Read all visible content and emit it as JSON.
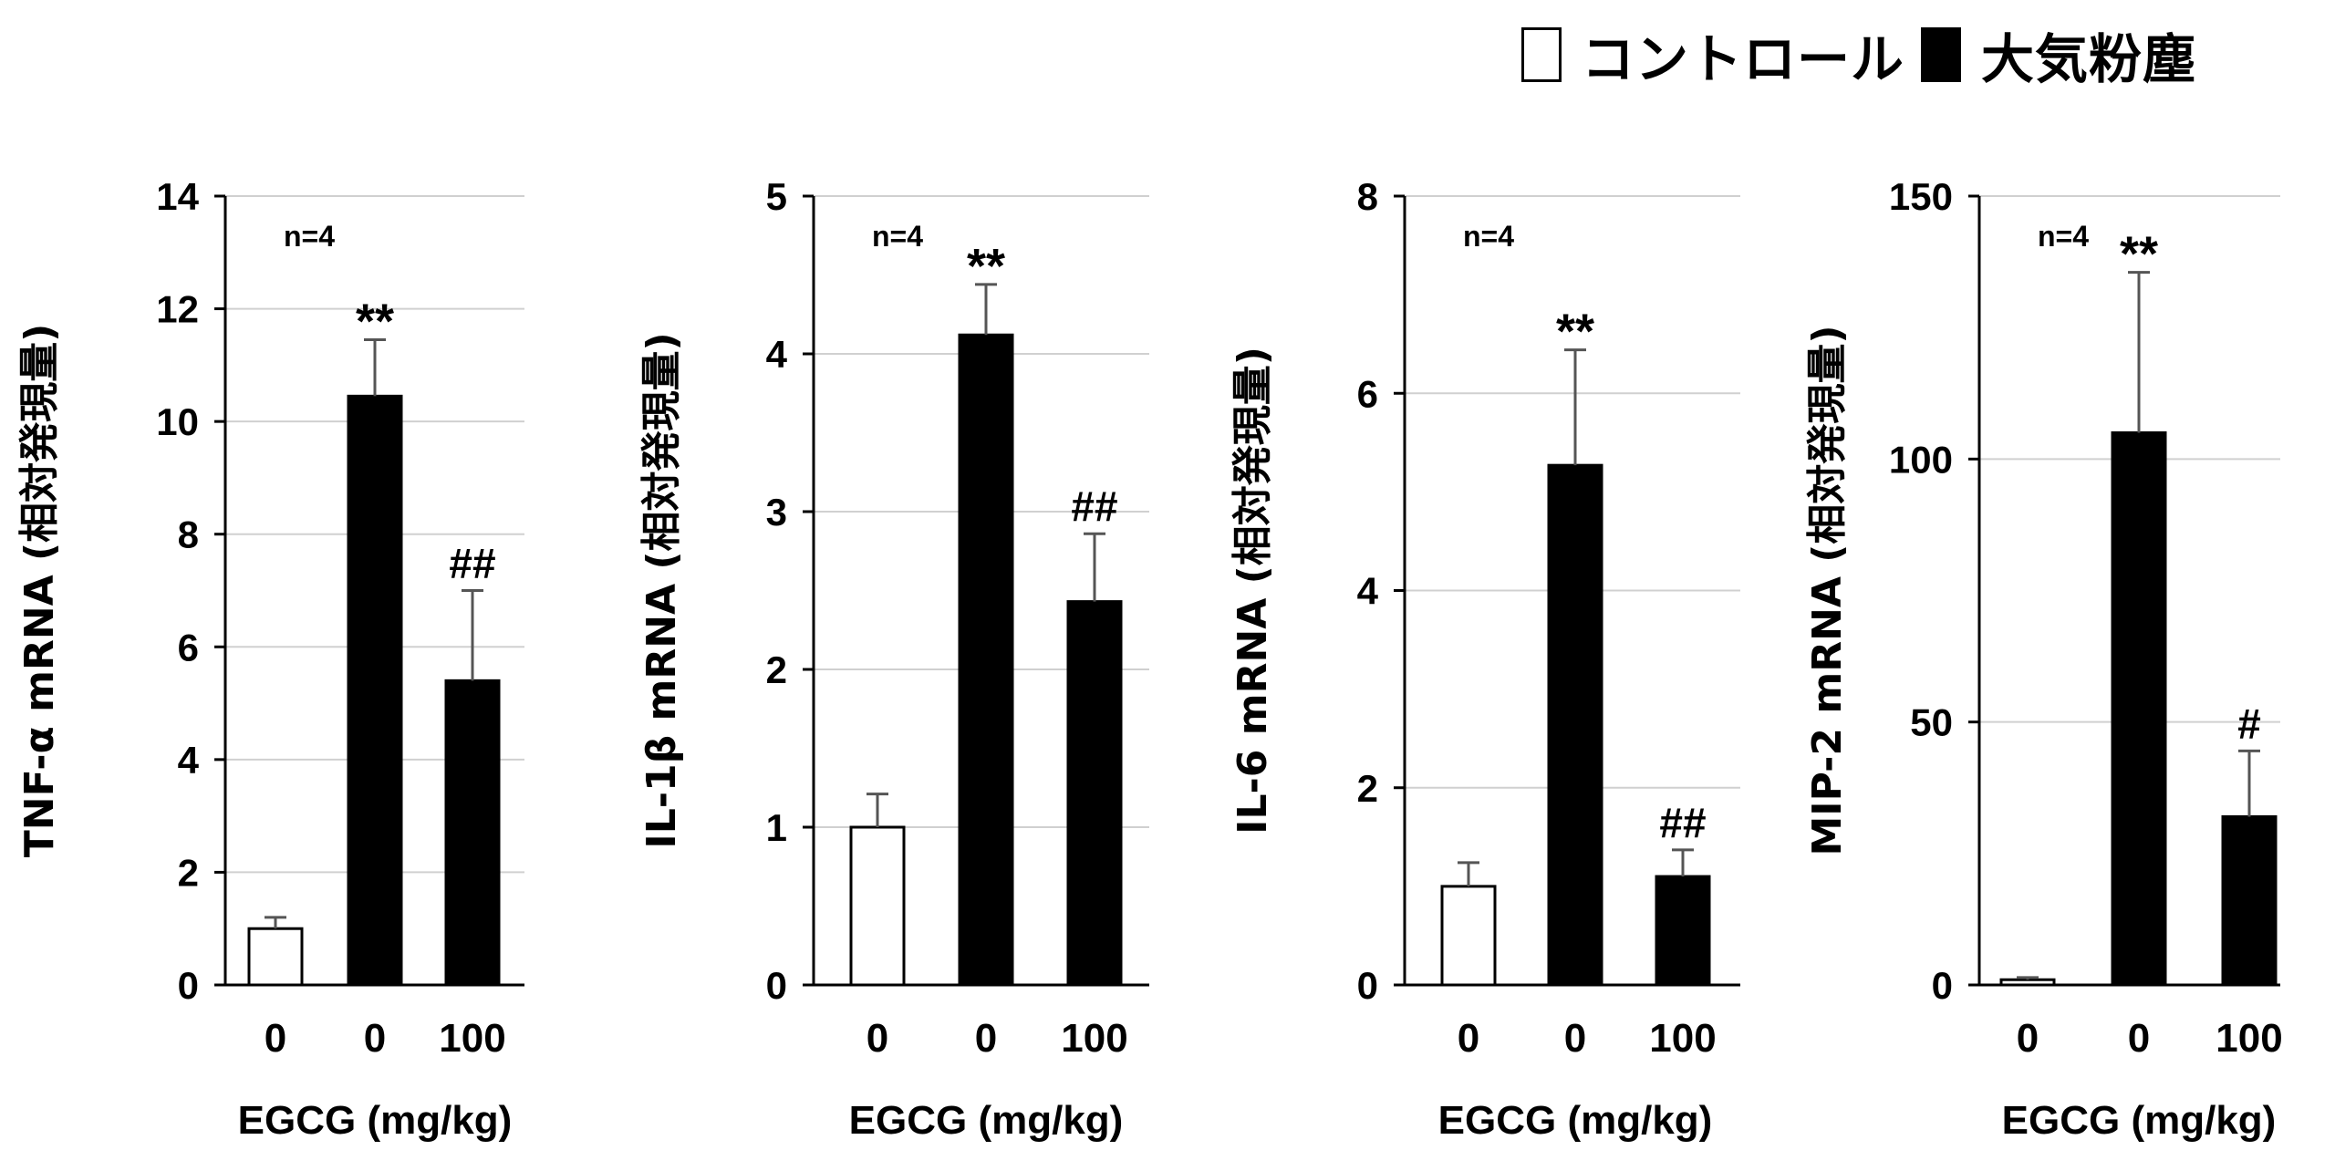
{
  "legend": [
    {
      "label": "コントロール",
      "fill": "#ffffff"
    },
    {
      "label": "大気粉塵",
      "fill": "#000000"
    }
  ],
  "chart_data": [
    {
      "type": "bar",
      "ylabel": "TNF-α mRNA (相対発現量)",
      "xlabel": "EGCG (mg/kg)",
      "annotation": "n=4",
      "ylim": [
        0,
        14
      ],
      "yticks": [
        0,
        2,
        4,
        6,
        8,
        10,
        12,
        14
      ],
      "grid": true,
      "categories": [
        "0",
        "0",
        "100"
      ],
      "values": [
        1.0,
        10.45,
        5.4
      ],
      "errors": [
        0.2,
        1.0,
        1.6
      ],
      "fills": [
        "#ffffff",
        "#000000",
        "#000000"
      ],
      "marks": [
        "",
        "**",
        "##"
      ]
    },
    {
      "type": "bar",
      "ylabel": "IL-1β mRNA (相対発現量)",
      "xlabel": "EGCG (mg/kg)",
      "annotation": "n=4",
      "ylim": [
        0,
        5
      ],
      "yticks": [
        0,
        1,
        2,
        3,
        4,
        5
      ],
      "grid": true,
      "categories": [
        "0",
        "0",
        "100"
      ],
      "values": [
        1.0,
        4.12,
        2.43
      ],
      "errors": [
        0.21,
        0.32,
        0.43
      ],
      "fills": [
        "#ffffff",
        "#000000",
        "#000000"
      ],
      "marks": [
        "",
        "**",
        "##"
      ]
    },
    {
      "type": "bar",
      "ylabel": "IL-6 mRNA (相対発現量)",
      "xlabel": "EGCG (mg/kg)",
      "annotation": "n=4",
      "ylim": [
        0,
        8
      ],
      "yticks": [
        0,
        2,
        4,
        6,
        8
      ],
      "grid": true,
      "categories": [
        "0",
        "0",
        "100"
      ],
      "values": [
        1.0,
        5.27,
        1.1
      ],
      "errors": [
        0.24,
        1.17,
        0.27
      ],
      "fills": [
        "#ffffff",
        "#000000",
        "#000000"
      ],
      "marks": [
        "",
        "**",
        "##"
      ]
    },
    {
      "type": "bar",
      "ylabel": "MIP-2 mRNA (相対発現量)",
      "xlabel": "EGCG (mg/kg)",
      "annotation": "n=4",
      "ylim": [
        0,
        150
      ],
      "yticks": [
        0,
        50,
        100,
        150
      ],
      "grid": true,
      "categories": [
        "0",
        "0",
        "100"
      ],
      "values": [
        1.0,
        105.0,
        32.0
      ],
      "errors": [
        0.4,
        30.5,
        12.5
      ],
      "fills": [
        "#ffffff",
        "#000000",
        "#000000"
      ],
      "marks": [
        "",
        "**",
        "#"
      ]
    }
  ]
}
